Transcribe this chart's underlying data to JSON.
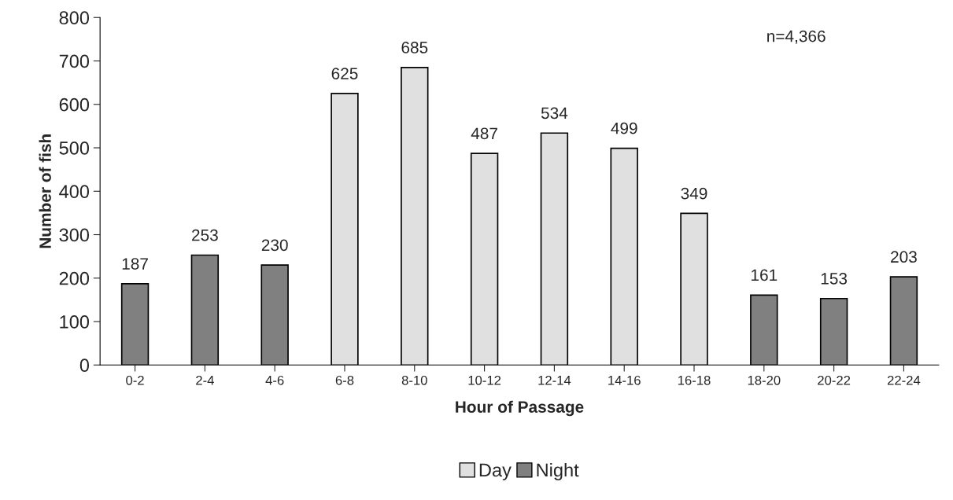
{
  "chart_data": {
    "type": "bar",
    "xlabel": "Hour of Passage",
    "ylabel": "Number of fish",
    "categories": [
      "0-2",
      "2-4",
      "4-6",
      "6-8",
      "8-10",
      "10-12",
      "12-14",
      "14-16",
      "16-18",
      "18-20",
      "20-22",
      "22-24"
    ],
    "series": [
      {
        "name": "Day",
        "color": "#e0e0e0",
        "values": [
          null,
          null,
          null,
          625,
          685,
          487,
          534,
          499,
          349,
          null,
          null,
          null
        ]
      },
      {
        "name": "Night",
        "color": "#808080",
        "values": [
          187,
          253,
          230,
          null,
          null,
          null,
          null,
          null,
          null,
          161,
          153,
          203
        ]
      }
    ],
    "ylim": [
      0,
      800
    ],
    "yticks": [
      0,
      100,
      200,
      300,
      400,
      500,
      600,
      700,
      800
    ],
    "data_labels": true,
    "grid": false,
    "legend": "bottom",
    "annotations": [
      "n=4,366"
    ]
  }
}
